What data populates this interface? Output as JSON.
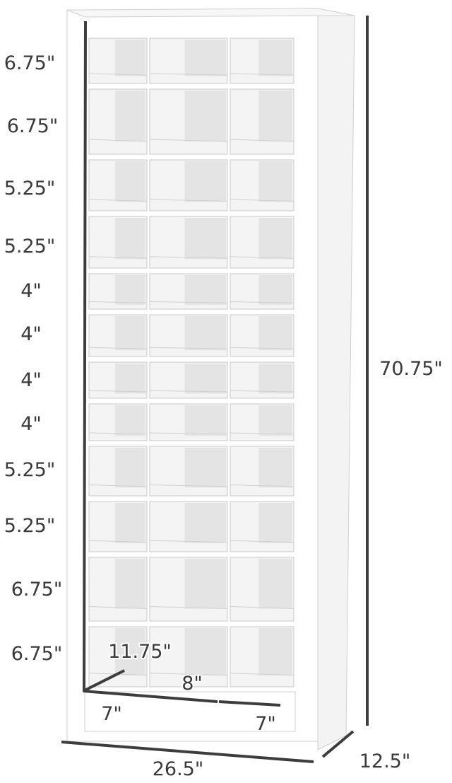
{
  "diagram": {
    "row_heights": [
      "6.75\"",
      "6.75\"",
      "5.25\"",
      "5.25\"",
      "4\"",
      "4\"",
      "4\"",
      "4\"",
      "5.25\"",
      "5.25\"",
      "6.75\"",
      "6.75\""
    ],
    "total_height": "70.75\"",
    "total_width": "26.5\"",
    "total_depth": "12.5\"",
    "cubby_depth": "11.75\"",
    "cubby_width_side": "7\"",
    "cubby_width_middle": "8\"",
    "cubby_width_side_right": "7\"",
    "colors": {
      "cabinet": "#ffffff",
      "cubby_shade": "#e6e6e6",
      "outline": "#c8c8c8",
      "dimension_line": "#3d3d3d"
    }
  }
}
